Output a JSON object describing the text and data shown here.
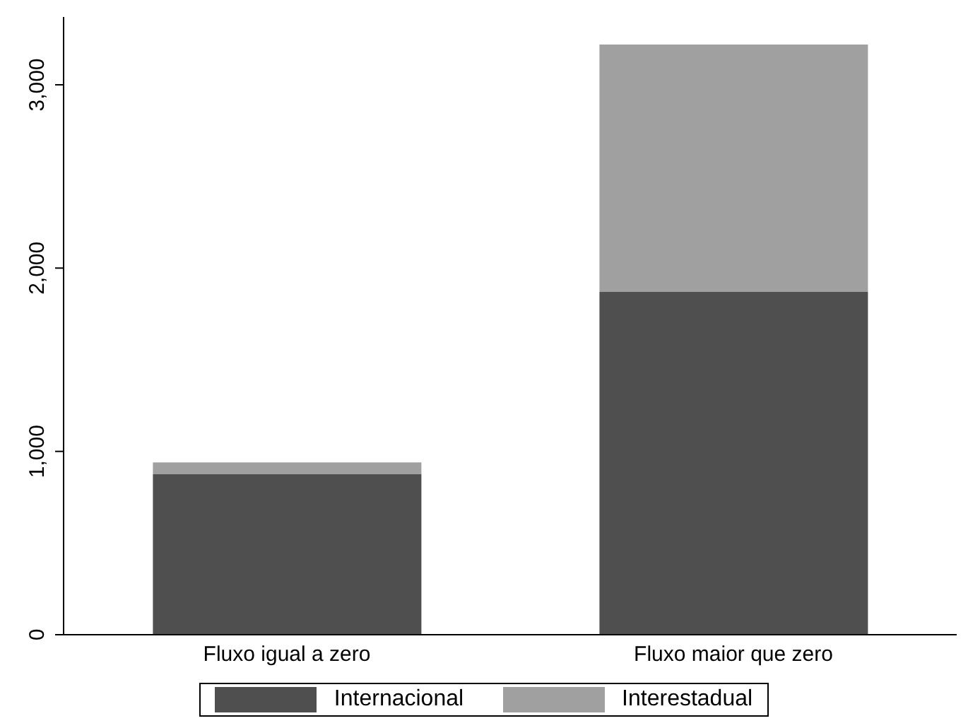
{
  "chart_data": {
    "type": "bar",
    "stacked": true,
    "categories": [
      "Fluxo igual a zero",
      "Fluxo maior que zero"
    ],
    "series": [
      {
        "name": "Internacional",
        "color": "#4f4f4f",
        "values": [
          875,
          1870
        ]
      },
      {
        "name": "Interestadual",
        "color": "#a0a0a0",
        "values": [
          65,
          1350
        ]
      }
    ],
    "ylim": [
      0,
      3370
    ],
    "yticks": [
      {
        "value": 0,
        "label": "0"
      },
      {
        "value": 1000,
        "label": "1,000"
      },
      {
        "value": 2000,
        "label": "2,000"
      },
      {
        "value": 3000,
        "label": "3,000"
      }
    ],
    "grid": false,
    "legend": "bottom"
  }
}
